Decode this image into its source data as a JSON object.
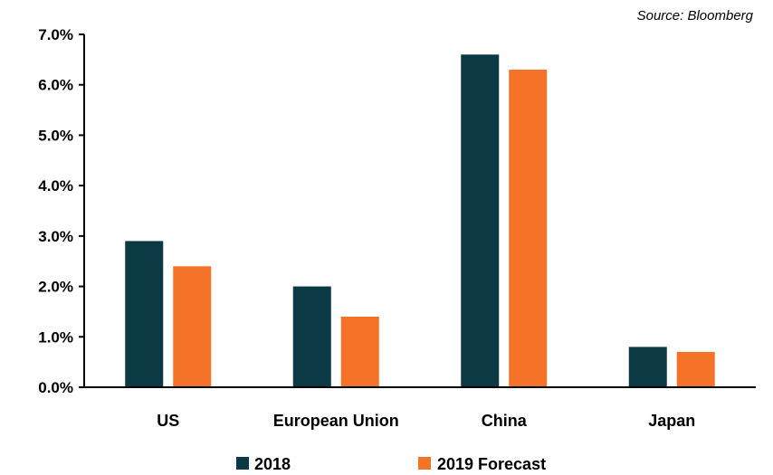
{
  "chart_data": {
    "type": "bar",
    "source": "Source: Bloomberg",
    "categories": [
      "US",
      "European Union",
      "China",
      "Japan"
    ],
    "series": [
      {
        "name": "2018",
        "values": [
          2.9,
          2.0,
          6.6,
          0.8
        ],
        "color": "#0b3a45"
      },
      {
        "name": "2019 Forecast",
        "values": [
          2.4,
          1.4,
          6.3,
          0.7
        ],
        "color": "#f47328"
      }
    ],
    "yticks": [
      "0.0%",
      "1.0%",
      "2.0%",
      "3.0%",
      "4.0%",
      "5.0%",
      "6.0%",
      "7.0%"
    ],
    "ylim": [
      0,
      7
    ],
    "grid": false,
    "legend": "bottom"
  }
}
